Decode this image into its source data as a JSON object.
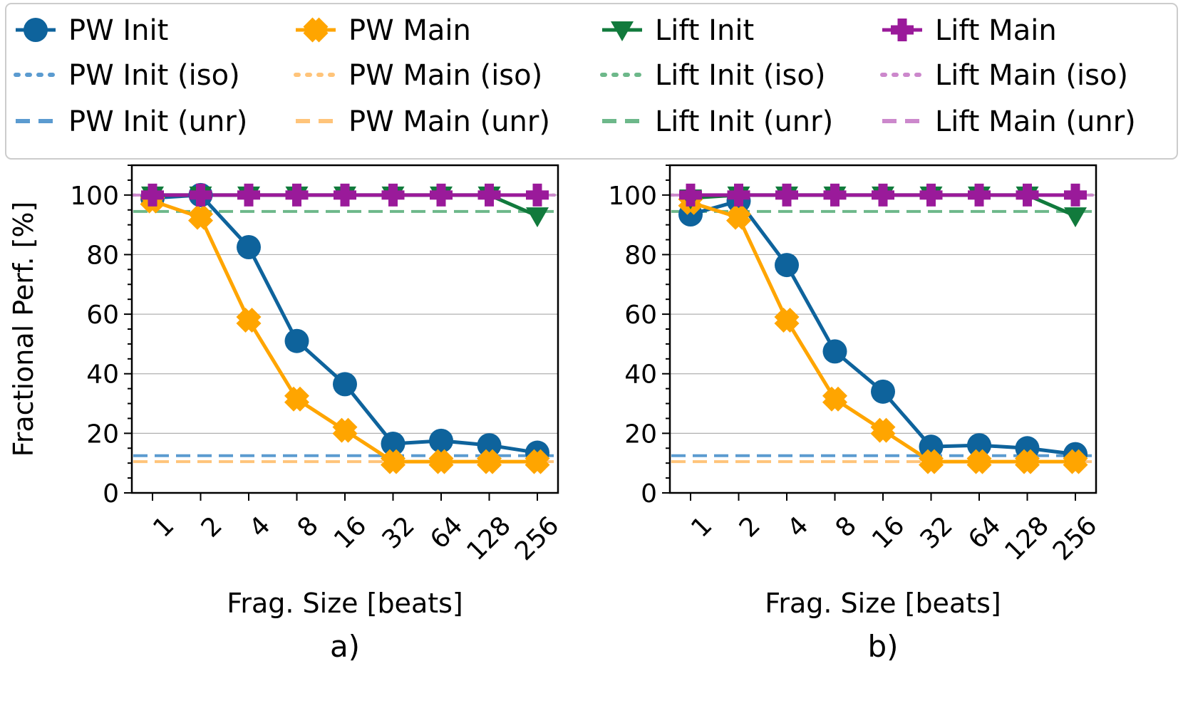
{
  "colors": {
    "pw_init": "#0e639c",
    "pw_main": "#ffa500",
    "lift_init": "#117a3c",
    "lift_main": "#9a1a9a",
    "pw_init_ref": "#5b9bd0",
    "pw_main_ref": "#ffc47a",
    "lift_init_ref": "#6db88a",
    "lift_main_ref": "#cc88cc"
  },
  "legend": {
    "items": [
      {
        "label": "PW Init",
        "key": "pw_init",
        "style": "solid",
        "marker": "circle"
      },
      {
        "label": "PW Main",
        "key": "pw_main",
        "style": "solid",
        "marker": "x"
      },
      {
        "label": "Lift Init",
        "key": "lift_init",
        "style": "solid",
        "marker": "triangle"
      },
      {
        "label": "Lift Main",
        "key": "lift_main",
        "style": "solid",
        "marker": "plus"
      },
      {
        "label": "PW Init (iso)",
        "key": "pw_init_ref",
        "style": "dotted",
        "marker": "none"
      },
      {
        "label": "PW Main (iso)",
        "key": "pw_main_ref",
        "style": "dotted",
        "marker": "none"
      },
      {
        "label": "Lift Init (iso)",
        "key": "lift_init_ref",
        "style": "dotted",
        "marker": "none"
      },
      {
        "label": "Lift Main (iso)",
        "key": "lift_main_ref",
        "style": "dotted",
        "marker": "none"
      },
      {
        "label": "PW Init (unr)",
        "key": "pw_init_ref",
        "style": "dashed",
        "marker": "none"
      },
      {
        "label": "PW Main (unr)",
        "key": "pw_main_ref",
        "style": "dashed",
        "marker": "none"
      },
      {
        "label": "Lift Init (unr)",
        "key": "lift_init_ref",
        "style": "dashed",
        "marker": "none"
      },
      {
        "label": "Lift Main (unr)",
        "key": "lift_main_ref",
        "style": "dashed",
        "marker": "none"
      }
    ]
  },
  "chart_data": [
    {
      "type": "line",
      "panel_label": "a)",
      "xlabel": "Frag. Size [beats]",
      "ylabel": "Fractional Perf. [%]",
      "categories": [
        "1",
        "2",
        "4",
        "8",
        "16",
        "32",
        "64",
        "128",
        "256"
      ],
      "ylim": [
        0,
        110
      ],
      "yticks": [
        0,
        20,
        40,
        60,
        80,
        100
      ],
      "grid": "y",
      "series": [
        {
          "name": "PW Init",
          "key": "pw_init",
          "marker": "circle",
          "values": [
            99,
            100,
            82.5,
            51,
            36.5,
            16.5,
            17.5,
            16,
            13.5
          ]
        },
        {
          "name": "PW Main",
          "key": "pw_main",
          "marker": "x",
          "values": [
            98,
            92.5,
            58,
            31.5,
            21,
            10.5,
            10.5,
            10.5,
            10.5
          ]
        },
        {
          "name": "Lift Init",
          "key": "lift_init",
          "marker": "triangle",
          "values": [
            100,
            100,
            100,
            100,
            100,
            100,
            100,
            100,
            93
          ]
        },
        {
          "name": "Lift Main",
          "key": "lift_main",
          "marker": "plus",
          "values": [
            100,
            100,
            100,
            100,
            100,
            100,
            100,
            100,
            100
          ]
        }
      ],
      "reference_lines": [
        {
          "name": "PW Init (iso)",
          "key": "pw_init_ref",
          "style": "dotted",
          "value": 100
        },
        {
          "name": "PW Main (iso)",
          "key": "pw_main_ref",
          "style": "dotted",
          "value": 100
        },
        {
          "name": "Lift Init (iso)",
          "key": "lift_init_ref",
          "style": "dotted",
          "value": 100
        },
        {
          "name": "Lift Main (iso)",
          "key": "lift_main_ref",
          "style": "dotted",
          "value": 100
        },
        {
          "name": "PW Init (unr)",
          "key": "pw_init_ref",
          "style": "dashed",
          "value": 12.5
        },
        {
          "name": "PW Main (unr)",
          "key": "pw_main_ref",
          "style": "dashed",
          "value": 10.5
        },
        {
          "name": "Lift Init (unr)",
          "key": "lift_init_ref",
          "style": "dashed",
          "value": 94.5
        },
        {
          "name": "Lift Main (unr)",
          "key": "lift_main_ref",
          "style": "dashed",
          "value": 100
        }
      ]
    },
    {
      "type": "line",
      "panel_label": "b)",
      "xlabel": "Frag. Size [beats]",
      "ylabel": "",
      "categories": [
        "1",
        "2",
        "4",
        "8",
        "16",
        "32",
        "64",
        "128",
        "256"
      ],
      "ylim": [
        0,
        110
      ],
      "yticks": [
        0,
        20,
        40,
        60,
        80,
        100
      ],
      "grid": "y",
      "series": [
        {
          "name": "PW Init",
          "key": "pw_init",
          "marker": "circle",
          "values": [
            93.5,
            98,
            76.5,
            47.5,
            34,
            15.5,
            16,
            15,
            13
          ]
        },
        {
          "name": "PW Main",
          "key": "pw_main",
          "marker": "x",
          "values": [
            97.5,
            92.5,
            58,
            31.5,
            21,
            10.5,
            10.5,
            10.5,
            10.5
          ]
        },
        {
          "name": "Lift Init",
          "key": "lift_init",
          "marker": "triangle",
          "values": [
            99,
            100,
            100,
            100,
            100,
            100,
            100,
            100,
            93
          ]
        },
        {
          "name": "Lift Main",
          "key": "lift_main",
          "marker": "plus",
          "values": [
            100,
            100,
            100,
            100,
            100,
            100,
            100,
            100,
            100
          ]
        }
      ],
      "reference_lines": [
        {
          "name": "PW Init (iso)",
          "key": "pw_init_ref",
          "style": "dotted",
          "value": 100
        },
        {
          "name": "PW Main (iso)",
          "key": "pw_main_ref",
          "style": "dotted",
          "value": 100
        },
        {
          "name": "Lift Init (iso)",
          "key": "lift_init_ref",
          "style": "dotted",
          "value": 100
        },
        {
          "name": "Lift Main (iso)",
          "key": "lift_main_ref",
          "style": "dotted",
          "value": 100
        },
        {
          "name": "PW Init (unr)",
          "key": "pw_init_ref",
          "style": "dashed",
          "value": 12.5
        },
        {
          "name": "PW Main (unr)",
          "key": "pw_main_ref",
          "style": "dashed",
          "value": 10.5
        },
        {
          "name": "Lift Init (unr)",
          "key": "lift_init_ref",
          "style": "dashed",
          "value": 94.5
        },
        {
          "name": "Lift Main (unr)",
          "key": "lift_main_ref",
          "style": "dashed",
          "value": 100
        }
      ]
    }
  ]
}
